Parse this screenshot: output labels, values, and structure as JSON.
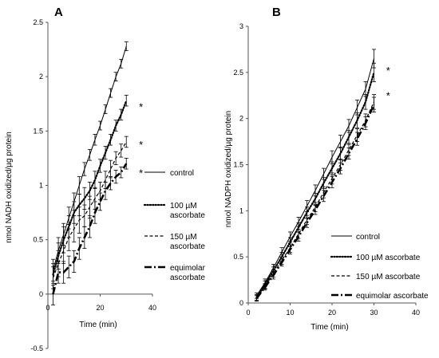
{
  "chart_data": [
    {
      "panel": "A",
      "type": "line",
      "xlabel": "Time (min)",
      "ylabel": "nmol NADH oxidized/µg protein",
      "xlim": [
        0,
        40
      ],
      "ylim": [
        -0.5,
        2.5
      ],
      "xticks": [
        "0",
        "20",
        "40"
      ],
      "yticks": [
        "-0.5",
        "0",
        "0.5",
        "1",
        "1.5",
        "2",
        "2.5"
      ],
      "grid": false,
      "legend_position": "right",
      "series": [
        {
          "name": "control",
          "style": "solid",
          "x": [
            2,
            4,
            6,
            8,
            10,
            12,
            14,
            16,
            18,
            20,
            22,
            24,
            26,
            28,
            30
          ],
          "y": [
            0.22,
            0.4,
            0.55,
            0.7,
            0.85,
            1.0,
            1.15,
            1.28,
            1.42,
            1.55,
            1.7,
            1.85,
            2.0,
            2.12,
            2.28
          ],
          "err": [
            0.1,
            0.12,
            0.1,
            0.1,
            0.08,
            0.08,
            0.06,
            0.05,
            0.05,
            0.04,
            0.04,
            0.04,
            0.04,
            0.04,
            0.04
          ]
        },
        {
          "name": "100 µM ascorbate",
          "style": "dotted",
          "x": [
            2,
            4,
            6,
            8,
            10,
            12,
            14,
            16,
            18,
            20,
            22,
            24,
            26,
            28,
            30
          ],
          "y": [
            0.18,
            0.35,
            0.5,
            0.62,
            0.75,
            0.82,
            0.88,
            0.95,
            1.05,
            1.18,
            1.3,
            1.42,
            1.55,
            1.65,
            1.78
          ],
          "err": [
            0.1,
            0.12,
            0.12,
            0.1,
            0.1,
            0.1,
            0.1,
            0.08,
            0.08,
            0.06,
            0.06,
            0.05,
            0.05,
            0.05,
            0.05
          ]
        },
        {
          "name": "150 µM ascorbate",
          "style": "dashed",
          "x": [
            2,
            4,
            6,
            8,
            10,
            12,
            14,
            16,
            18,
            20,
            22,
            24,
            26,
            28,
            30
          ],
          "y": [
            0.15,
            0.28,
            0.4,
            0.52,
            0.6,
            0.68,
            0.72,
            0.8,
            0.88,
            0.95,
            1.05,
            1.15,
            1.25,
            1.32,
            1.4
          ],
          "err": [
            0.1,
            0.12,
            0.12,
            0.12,
            0.12,
            0.12,
            0.1,
            0.1,
            0.1,
            0.08,
            0.08,
            0.08,
            0.06,
            0.06,
            0.05
          ]
        },
        {
          "name": "equimolar ascorbate",
          "style": "dashdot",
          "x": [
            2,
            4,
            6,
            8,
            10,
            12,
            14,
            16,
            18,
            20,
            22,
            24,
            26,
            28,
            30
          ],
          "y": [
            0.0,
            0.2,
            0.2,
            0.25,
            0.3,
            0.42,
            0.52,
            0.62,
            0.75,
            0.85,
            0.95,
            1.02,
            1.08,
            1.12,
            1.2
          ],
          "err": [
            0.1,
            0.1,
            0.1,
            0.1,
            0.1,
            0.1,
            0.1,
            0.1,
            0.1,
            0.08,
            0.08,
            0.06,
            0.06,
            0.05,
            0.05
          ]
        }
      ],
      "annotations": [
        {
          "text": "*",
          "x": 35,
          "y": 1.75
        },
        {
          "text": "*",
          "x": 35,
          "y": 1.4
        },
        {
          "text": "*",
          "x": 35,
          "y": 1.14
        }
      ]
    },
    {
      "panel": "B",
      "type": "line",
      "xlabel": "Time (min)",
      "ylabel": "nmol NADPH oxidized/µg protein",
      "xlim": [
        0,
        40
      ],
      "ylim": [
        0,
        3
      ],
      "xticks": [
        "0",
        "10",
        "20",
        "30",
        "40"
      ],
      "yticks": [
        "0",
        "0.5",
        "1",
        "1.5",
        "2",
        "2.5",
        "3"
      ],
      "grid": false,
      "legend_position": "bottom-right",
      "series": [
        {
          "name": "control",
          "style": "solid",
          "x": [
            2,
            4,
            6,
            8,
            10,
            12,
            14,
            16,
            18,
            20,
            22,
            24,
            26,
            28,
            30
          ],
          "y": [
            0.08,
            0.22,
            0.38,
            0.55,
            0.72,
            0.88,
            1.05,
            1.22,
            1.4,
            1.58,
            1.75,
            1.92,
            2.12,
            2.32,
            2.65
          ],
          "err": [
            0.03,
            0.04,
            0.04,
            0.05,
            0.05,
            0.05,
            0.06,
            0.06,
            0.06,
            0.07,
            0.07,
            0.07,
            0.08,
            0.08,
            0.1
          ]
        },
        {
          "name": "100 µM ascorbate",
          "style": "dotted",
          "x": [
            2,
            4,
            6,
            8,
            10,
            12,
            14,
            16,
            18,
            20,
            22,
            24,
            26,
            28,
            30
          ],
          "y": [
            0.06,
            0.2,
            0.35,
            0.5,
            0.66,
            0.82,
            0.98,
            1.13,
            1.3,
            1.46,
            1.62,
            1.8,
            1.98,
            2.18,
            2.5
          ],
          "err": [
            0.03,
            0.04,
            0.04,
            0.05,
            0.05,
            0.05,
            0.06,
            0.06,
            0.06,
            0.07,
            0.07,
            0.07,
            0.08,
            0.08,
            0.1
          ]
        },
        {
          "name": "150 µM ascorbate",
          "style": "dashed",
          "x": [
            2,
            4,
            6,
            8,
            10,
            12,
            14,
            16,
            18,
            20,
            22,
            24,
            26,
            28,
            30
          ],
          "y": [
            0.05,
            0.18,
            0.32,
            0.46,
            0.6,
            0.75,
            0.9,
            1.04,
            1.2,
            1.35,
            1.5,
            1.66,
            1.82,
            1.98,
            2.18
          ],
          "err": [
            0.03,
            0.03,
            0.04,
            0.04,
            0.05,
            0.05,
            0.05,
            0.05,
            0.06,
            0.06,
            0.06,
            0.06,
            0.07,
            0.07,
            0.08
          ]
        },
        {
          "name": "equimolar ascorbate",
          "style": "dashdot",
          "x": [
            2,
            4,
            6,
            8,
            10,
            12,
            14,
            16,
            18,
            20,
            22,
            24,
            26,
            28,
            30
          ],
          "y": [
            0.05,
            0.17,
            0.3,
            0.44,
            0.58,
            0.72,
            0.87,
            1.01,
            1.16,
            1.31,
            1.46,
            1.62,
            1.78,
            1.95,
            2.15
          ],
          "err": [
            0.03,
            0.03,
            0.04,
            0.04,
            0.05,
            0.05,
            0.05,
            0.05,
            0.06,
            0.06,
            0.06,
            0.06,
            0.07,
            0.07,
            0.08
          ]
        }
      ],
      "annotations": [
        {
          "text": "*",
          "x": 33,
          "y": 2.55
        },
        {
          "text": "*",
          "x": 33,
          "y": 2.28
        }
      ]
    }
  ],
  "legend": {
    "A": [
      {
        "lines": [
          "control"
        ]
      },
      {
        "lines": [
          "100 µM",
          "ascorbate"
        ]
      },
      {
        "lines": [
          "150 µM",
          "ascorbate"
        ]
      },
      {
        "lines": [
          "equimolar",
          "ascorbate"
        ]
      }
    ],
    "B": [
      {
        "lines": [
          "control"
        ]
      },
      {
        "lines": [
          "100 µM ascorbate"
        ]
      },
      {
        "lines": [
          "150 µM ascorbate"
        ]
      },
      {
        "lines": [
          "equimolar ascorbate"
        ]
      }
    ]
  }
}
